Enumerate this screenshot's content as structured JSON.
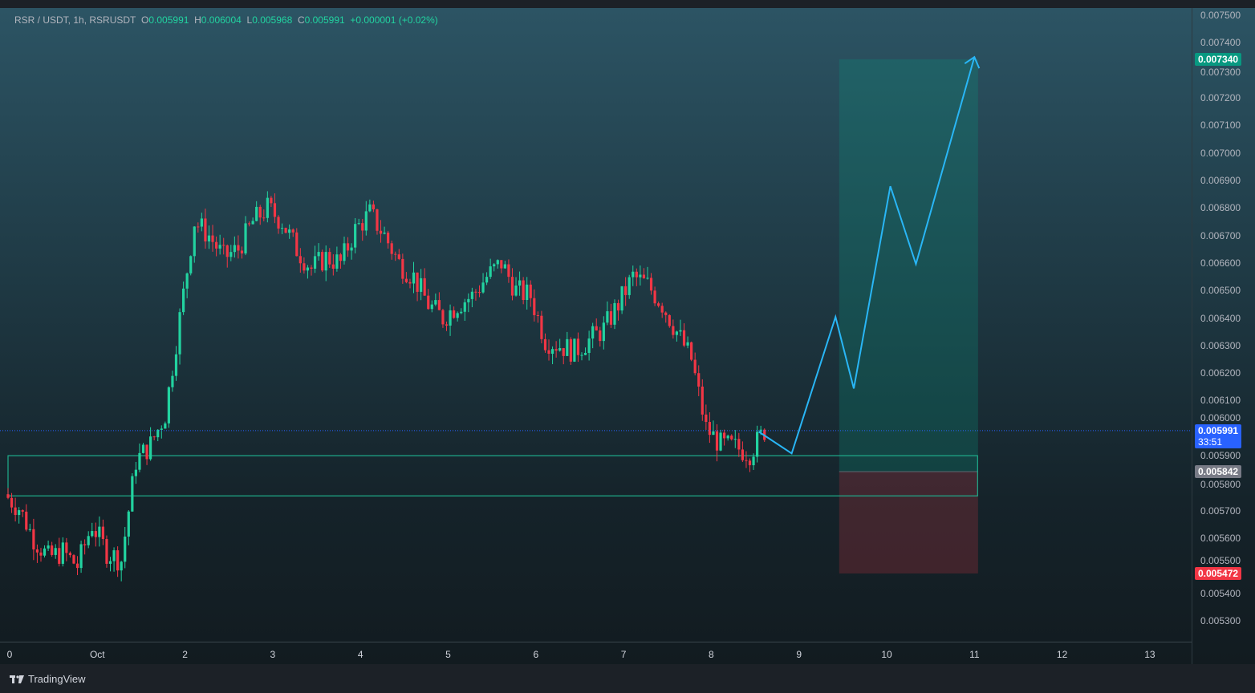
{
  "legend": {
    "symbol": "RSR / USDT, 1h, RSRUSDT",
    "o_label": "O",
    "o": "0.005991",
    "h_label": "H",
    "h": "0.006004",
    "l_label": "L",
    "l": "0.005968",
    "c_label": "C",
    "c": "0.005991",
    "change": "+0.000001 (+0.02%)"
  },
  "price_axis": {
    "ticks": [
      "0.007500",
      "0.007400",
      "0.007300",
      "0.007200",
      "0.007100",
      "0.007000",
      "0.006900",
      "0.006800",
      "0.006700",
      "0.006600",
      "0.006500",
      "0.006400",
      "0.006300",
      "0.006200",
      "0.006100",
      "0.006000",
      "0.005900",
      "0.005800",
      "0.005700",
      "0.005600",
      "0.005500",
      "0.005400",
      "0.005300"
    ],
    "current_price": "0.005991",
    "countdown": "33:51",
    "entry_price": "0.005842",
    "target_price": "0.007340",
    "stop_price": "0.005472"
  },
  "time_axis": {
    "ticks": [
      "0",
      "Oct",
      "2",
      "3",
      "4",
      "5",
      "6",
      "7",
      "8",
      "9",
      "10",
      "11",
      "12",
      "13"
    ]
  },
  "footer": {
    "brand": "TradingView"
  },
  "colors": {
    "up": "#22d3a0",
    "down": "#f23645",
    "projection": "#29b6f6",
    "current": "#2962ff",
    "target": "#089981",
    "stop": "#f23645",
    "entry": "#787b86"
  },
  "chart_data": {
    "type": "candlestick",
    "symbol": "RSRUSDT",
    "interval": "1h",
    "ylim": [
      0.00525,
      0.0075
    ],
    "closes_4h": {
      "start": "Sep 30 00:00",
      "values": [
        0.00576,
        0.00571,
        0.0056,
        0.00553,
        0.00555,
        0.0055,
        0.00565,
        0.00555,
        0.00552,
        0.00588,
        0.00594,
        0.00605,
        0.0064,
        0.00675,
        0.0067,
        0.00662,
        0.00665,
        0.00675,
        0.0068,
        0.00675,
        0.00665,
        0.00658,
        0.00662,
        0.0066,
        0.00672,
        0.00678,
        0.0067,
        0.0066,
        0.00655,
        0.00645,
        0.0064,
        0.00645,
        0.00648,
        0.00655,
        0.0066,
        0.0065,
        0.00648,
        0.00632,
        0.0063,
        0.00628,
        0.00632,
        0.00636,
        0.00645,
        0.00655,
        0.00652,
        0.00645,
        0.00635,
        0.00625,
        0.006,
        0.00594,
        0.00593,
        0.00591,
        0.005991
      ]
    },
    "support_zone": {
      "from": "Sep 30 00:00",
      "to": "Oct 11 00:00",
      "low": 0.005754,
      "high": 0.0059
    },
    "long_position": {
      "from": "Oct 9 11:00",
      "to": "Oct 11 01:00",
      "entry": 0.005842,
      "target": 0.00734,
      "stop": 0.005472
    },
    "projection_path": [
      [
        "Oct 8 13:00",
        0.005987
      ],
      [
        "Oct 8 22:00",
        0.005908
      ],
      [
        "Oct 9 10:00",
        0.006404
      ],
      [
        "Oct 9 15:00",
        0.006144
      ],
      [
        "Oct 10 01:00",
        0.006879
      ],
      [
        "Oct 10 08:00",
        0.006596
      ],
      [
        "Oct 11 00:00",
        0.007348
      ]
    ]
  }
}
